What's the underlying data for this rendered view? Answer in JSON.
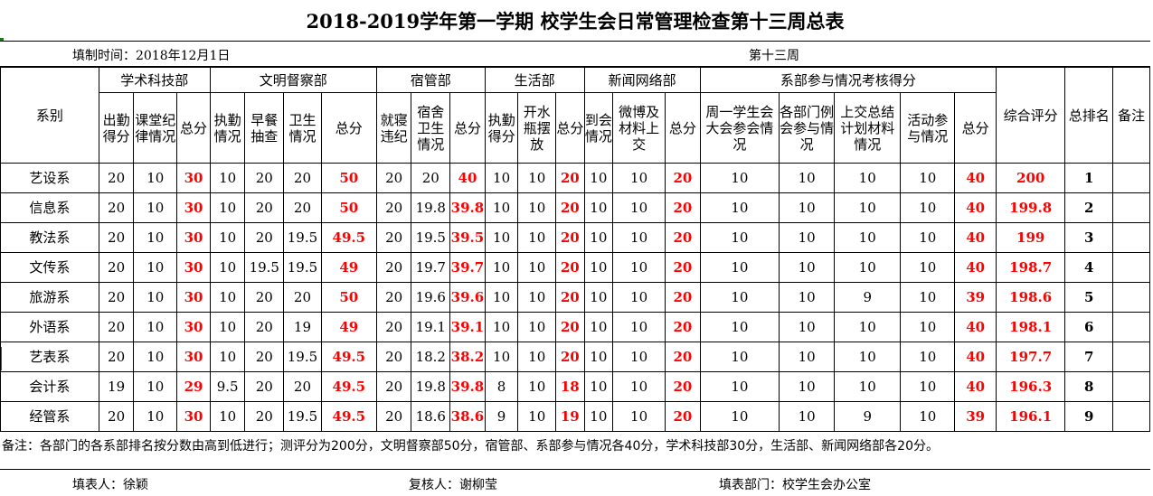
{
  "title": "2018-2019学年第一学期  校学生会日常管理检查第十三周总表",
  "fill_time": "填制时间：2018年12月1日",
  "week": "第十三周",
  "groups": {
    "dept": "系别",
    "academic": "学术科技部",
    "civil": "文明督察部",
    "dorm": "宿管部",
    "life": "生活部",
    "news": "新闻网络部",
    "participation": "系部参与情况考核得分",
    "overall": "综合评分",
    "rank": "总排名",
    "remark": "备注"
  },
  "subheaders": {
    "academic": [
      "出勤得分",
      "课堂纪律情况",
      "总分"
    ],
    "civil": [
      "执勤情况",
      "早餐抽查",
      "卫生情况",
      "总分"
    ],
    "dorm": [
      "就寝违纪",
      "宿舍卫生情况",
      "总分"
    ],
    "life": [
      "执勤得分",
      "开水瓶摆放",
      "总分"
    ],
    "news": [
      "到会情况",
      "微博及材料上交",
      "总分"
    ],
    "participation": [
      "周一学生会大会参会情况",
      "各部门例会参与情况",
      "上交总结计划材料情况",
      "活动参与情况",
      "总分"
    ]
  },
  "rows": [
    {
      "dept": "艺设系",
      "a1": "20",
      "a2": "10",
      "a3": "30",
      "c1": "10",
      "c2": "20",
      "c3": "20",
      "c4": "50",
      "d1": "20",
      "d2": "20",
      "d3": "40",
      "l1": "10",
      "l2": "10",
      "l3": "20",
      "n1": "10",
      "n2": "10",
      "n3": "20",
      "p1": "10",
      "p2": "10",
      "p3": "10",
      "p4": "10",
      "p5": "40",
      "overall": "200",
      "rank": "1"
    },
    {
      "dept": "信息系",
      "a1": "20",
      "a2": "10",
      "a3": "30",
      "c1": "10",
      "c2": "20",
      "c3": "20",
      "c4": "50",
      "d1": "20",
      "d2": "19.8",
      "d3": "39.8",
      "l1": "10",
      "l2": "10",
      "l3": "20",
      "n1": "10",
      "n2": "10",
      "n3": "20",
      "p1": "10",
      "p2": "10",
      "p3": "10",
      "p4": "10",
      "p5": "40",
      "overall": "199.8",
      "rank": "2"
    },
    {
      "dept": "教法系",
      "a1": "20",
      "a2": "10",
      "a3": "30",
      "c1": "10",
      "c2": "20",
      "c3": "19.5",
      "c4": "49.5",
      "d1": "20",
      "d2": "19.5",
      "d3": "39.5",
      "l1": "10",
      "l2": "10",
      "l3": "20",
      "n1": "10",
      "n2": "10",
      "n3": "20",
      "p1": "10",
      "p2": "10",
      "p3": "10",
      "p4": "10",
      "p5": "40",
      "overall": "199",
      "rank": "3"
    },
    {
      "dept": "文传系",
      "a1": "20",
      "a2": "10",
      "a3": "30",
      "c1": "10",
      "c2": "19.5",
      "c3": "19.5",
      "c4": "49",
      "d1": "20",
      "d2": "19.7",
      "d3": "39.7",
      "l1": "10",
      "l2": "10",
      "l3": "20",
      "n1": "10",
      "n2": "10",
      "n3": "20",
      "p1": "10",
      "p2": "10",
      "p3": "10",
      "p4": "10",
      "p5": "40",
      "overall": "198.7",
      "rank": "4"
    },
    {
      "dept": "旅游系",
      "a1": "20",
      "a2": "10",
      "a3": "30",
      "c1": "10",
      "c2": "20",
      "c3": "20",
      "c4": "50",
      "d1": "20",
      "d2": "19.6",
      "d3": "39.6",
      "l1": "10",
      "l2": "10",
      "l3": "20",
      "n1": "10",
      "n2": "10",
      "n3": "20",
      "p1": "10",
      "p2": "10",
      "p3": "9",
      "p4": "10",
      "p5": "39",
      "overall": "198.6",
      "rank": "5"
    },
    {
      "dept": "外语系",
      "a1": "20",
      "a2": "10",
      "a3": "30",
      "c1": "10",
      "c2": "20",
      "c3": "19",
      "c4": "49",
      "d1": "20",
      "d2": "19.1",
      "d3": "39.1",
      "l1": "10",
      "l2": "10",
      "l3": "20",
      "n1": "10",
      "n2": "10",
      "n3": "20",
      "p1": "10",
      "p2": "10",
      "p3": "10",
      "p4": "10",
      "p5": "40",
      "overall": "198.1",
      "rank": "6"
    },
    {
      "dept": "艺表系",
      "a1": "20",
      "a2": "10",
      "a3": "30",
      "c1": "10",
      "c2": "20",
      "c3": "19.5",
      "c4": "49.5",
      "d1": "20",
      "d2": "18.2",
      "d3": "38.2",
      "l1": "10",
      "l2": "10",
      "l3": "20",
      "n1": "10",
      "n2": "10",
      "n3": "20",
      "p1": "10",
      "p2": "10",
      "p3": "10",
      "p4": "10",
      "p5": "40",
      "overall": "197.7",
      "rank": "7"
    },
    {
      "dept": "会计系",
      "a1": "19",
      "a2": "10",
      "a3": "29",
      "c1": "9.5",
      "c2": "20",
      "c3": "20",
      "c4": "49.5",
      "d1": "20",
      "d2": "19.8",
      "d3": "39.8",
      "l1": "8",
      "l2": "10",
      "l3": "18",
      "n1": "10",
      "n2": "10",
      "n3": "20",
      "p1": "10",
      "p2": "10",
      "p3": "10",
      "p4": "10",
      "p5": "40",
      "overall": "196.3",
      "rank": "8"
    },
    {
      "dept": "经管系",
      "a1": "20",
      "a2": "10",
      "a3": "30",
      "c1": "10",
      "c2": "20",
      "c3": "19.5",
      "c4": "49.5",
      "d1": "20",
      "d2": "18.6",
      "d3": "38.6",
      "l1": "9",
      "l2": "10",
      "l3": "19",
      "n1": "10",
      "n2": "10",
      "n3": "20",
      "p1": "10",
      "p2": "10",
      "p3": "9",
      "p4": "10",
      "p5": "39",
      "overall": "196.1",
      "rank": "9"
    }
  ],
  "note": "备注：各部门的各系部排名按分数由高到低进行；测评分为200分，文明督察部50分，宿管部、系部参与情况各40分，学术科技部30分，生活部、新闻网络部各20分。",
  "signatures": {
    "filler": "填表人：徐颖",
    "reviewer": "复核人：谢柳莹",
    "department": "填表部门：校学生会办公室"
  },
  "colors": {
    "total_red": "#ff0000",
    "grid_line": "#000000",
    "marker_green": "#1a7a1a"
  }
}
